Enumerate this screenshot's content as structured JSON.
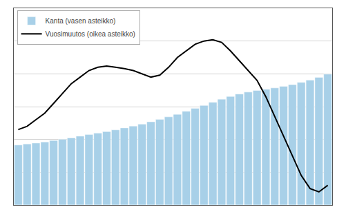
{
  "chart_data": {
    "type": "bar",
    "categories": [
      null,
      null,
      null,
      null,
      null,
      null,
      null,
      null,
      null,
      null,
      null,
      null,
      null,
      null,
      null,
      null,
      null,
      null,
      null,
      null,
      null,
      null,
      null,
      null,
      null,
      null,
      null,
      null,
      null,
      null,
      null,
      null,
      null,
      null,
      null,
      null
    ],
    "series": [
      {
        "name": "Kanta (vasen asteikko)",
        "type": "bar",
        "color": "#a8d0e8",
        "values": [
          30500,
          31000,
          31500,
          32000,
          32800,
          33400,
          34100,
          35000,
          35800,
          36500,
          37300,
          38200,
          39200,
          40100,
          41100,
          42300,
          43500,
          44800,
          46100,
          47600,
          49100,
          50600,
          52200,
          53800,
          55200,
          56400,
          57400,
          58200,
          58800,
          59500,
          60300,
          61200,
          62300,
          63500,
          64900,
          66500
        ]
      },
      {
        "name": "Vuosimuutos (oikea asteikko)",
        "type": "line",
        "color": "#000000",
        "axis": "y2",
        "values": [
          5.5,
          6.0,
          7.0,
          8.0,
          9.5,
          11.0,
          12.5,
          13.5,
          14.5,
          15.0,
          15.2,
          15.0,
          14.8,
          14.5,
          14.0,
          13.5,
          13.8,
          15.0,
          16.5,
          17.5,
          18.5,
          19.0,
          19.2,
          18.8,
          17.5,
          16.0,
          14.5,
          13.0,
          10.5,
          7.5,
          4.5,
          1.5,
          -1.5,
          -3.5,
          -4.0,
          -3.0
        ]
      }
    ],
    "ylim": [
      0,
      100000
    ],
    "yticks": [
      0,
      16666.666666666668,
      33333.333333333336,
      50000,
      66666.66666666667,
      83333.33333333334,
      100000
    ],
    "y2lim": [
      -6,
      24
    ],
    "grid": true,
    "legend": "upper left",
    "tick_labels": false
  }
}
